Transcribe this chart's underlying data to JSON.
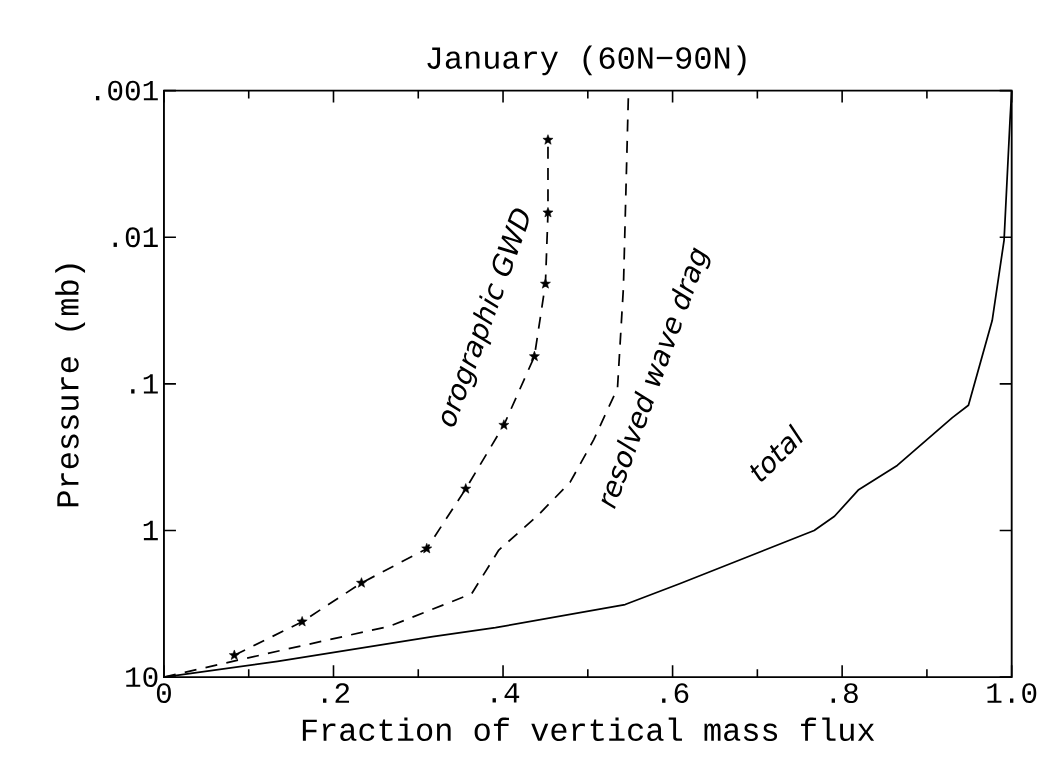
{
  "chart_data": {
    "type": "line",
    "title": "January (60N−90N)",
    "xlabel": "Fraction of vertical mass flux",
    "ylabel": "Pressure (mb)",
    "xlim": [
      0,
      1
    ],
    "xticks": [
      0,
      {
        "value": 0.2,
        "label": ".2"
      },
      {
        "value": 0.4,
        "label": ".4"
      },
      {
        "value": 0.6,
        "label": ".6"
      },
      {
        "value": 0.8,
        "label": ".8"
      },
      {
        "value": 1,
        "label": "1.0"
      }
    ],
    "ylim": [
      10,
      0.001
    ],
    "yticks": [
      10,
      1,
      {
        "value": 0.1,
        "label": ".1"
      },
      {
        "value": 0.01,
        "label": ".01"
      },
      {
        "value": 0.001,
        "label": ".001"
      }
    ],
    "log": "y",
    "grid": false,
    "legend": false,
    "series": [
      {
        "name": "orographic GWD",
        "color": "#000000",
        "marker": "star",
        "line_style": "dashed",
        "x": [
          0.083,
          0.163,
          0.233,
          0.31,
          0.356,
          0.401,
          0.437,
          0.45,
          0.453,
          0.453
        ],
        "values": [
          7.1,
          4.19,
          2.28,
          1.33,
          0.52,
          0.191,
          0.065,
          0.0208,
          0.0068,
          0.00217
        ]
      },
      {
        "name": "resolved wave drag",
        "color": "#000000",
        "marker": "none",
        "line_style": "dashed",
        "x": [
          0,
          0.147,
          0.266,
          0.363,
          0.395,
          0.441,
          0.479,
          0.507,
          0.535,
          0.542,
          0.548
        ],
        "values": [
          10,
          6.4,
          4.5,
          2.7,
          1.36,
          0.79,
          0.47,
          0.24,
          0.107,
          0.022,
          0.001
        ]
      },
      {
        "name": "total",
        "color": "#000000",
        "marker": "none",
        "line_style": "solid",
        "x": [
          0,
          0.134,
          0.317,
          0.391,
          0.544,
          0.609,
          0.767,
          0.791,
          0.819,
          0.865,
          0.93,
          0.949,
          0.977,
          0.991,
          0.998,
          1.0
        ],
        "values": [
          10,
          7.8,
          5.3,
          4.6,
          3.2,
          2.3,
          1.0,
          0.8,
          0.53,
          0.36,
          0.17,
          0.14,
          0.037,
          0.0105,
          0.0016,
          0.001
        ]
      }
    ]
  }
}
